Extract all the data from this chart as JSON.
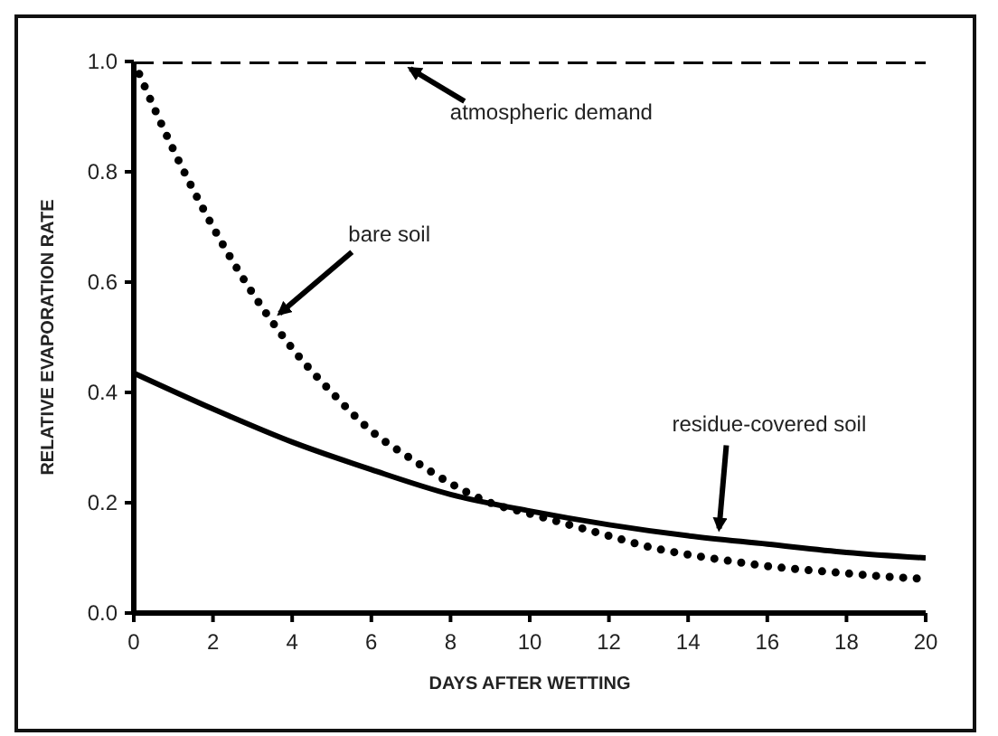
{
  "chart_data": {
    "type": "line",
    "xlabel": "DAYS AFTER WETTING",
    "ylabel": "RELATIVE EVAPORATION RATE",
    "xlim": [
      0,
      20
    ],
    "xticks": [
      0,
      2,
      4,
      6,
      8,
      10,
      12,
      14,
      16,
      18,
      20
    ],
    "ylim": [
      0,
      1
    ],
    "yticks": [
      {
        "value": 0,
        "label": "0.0"
      },
      0.2,
      0.4,
      0.6,
      0.8,
      {
        "value": 1,
        "label": "1.0"
      }
    ],
    "grid": false,
    "legend": false,
    "marker": "none",
    "series": [
      {
        "color": "#000000",
        "line_style": "dashed",
        "x": [
          0,
          20
        ],
        "values": [
          1.0,
          1.0
        ]
      },
      {
        "color": "#000000",
        "line_style": "dotted",
        "x": [
          0,
          1,
          2,
          3,
          4,
          5,
          6,
          7,
          8,
          9,
          10,
          11,
          12,
          13,
          14,
          15,
          16,
          17,
          18,
          19,
          20
        ],
        "values": [
          1.0,
          0.84,
          0.7,
          0.58,
          0.48,
          0.4,
          0.33,
          0.28,
          0.235,
          0.2,
          0.18,
          0.16,
          0.14,
          0.12,
          0.106,
          0.095,
          0.085,
          0.078,
          0.072,
          0.066,
          0.062
        ]
      },
      {
        "color": "#000000",
        "line_style": "solid",
        "x": [
          0,
          2,
          4,
          6,
          8,
          10,
          12,
          14,
          16,
          18,
          20
        ],
        "values": [
          0.435,
          0.37,
          0.31,
          0.26,
          0.215,
          0.185,
          0.16,
          0.14,
          0.125,
          0.11,
          0.1
        ]
      }
    ],
    "annotations": [
      {
        "text": "atmospheric demand",
        "x": 6.8,
        "y": 1.0
      },
      {
        "text": "bare soil",
        "x": 3.5,
        "y": 0.53
      },
      {
        "text": "residue-covered soil",
        "x": 14.6,
        "y": 0.14
      }
    ]
  }
}
